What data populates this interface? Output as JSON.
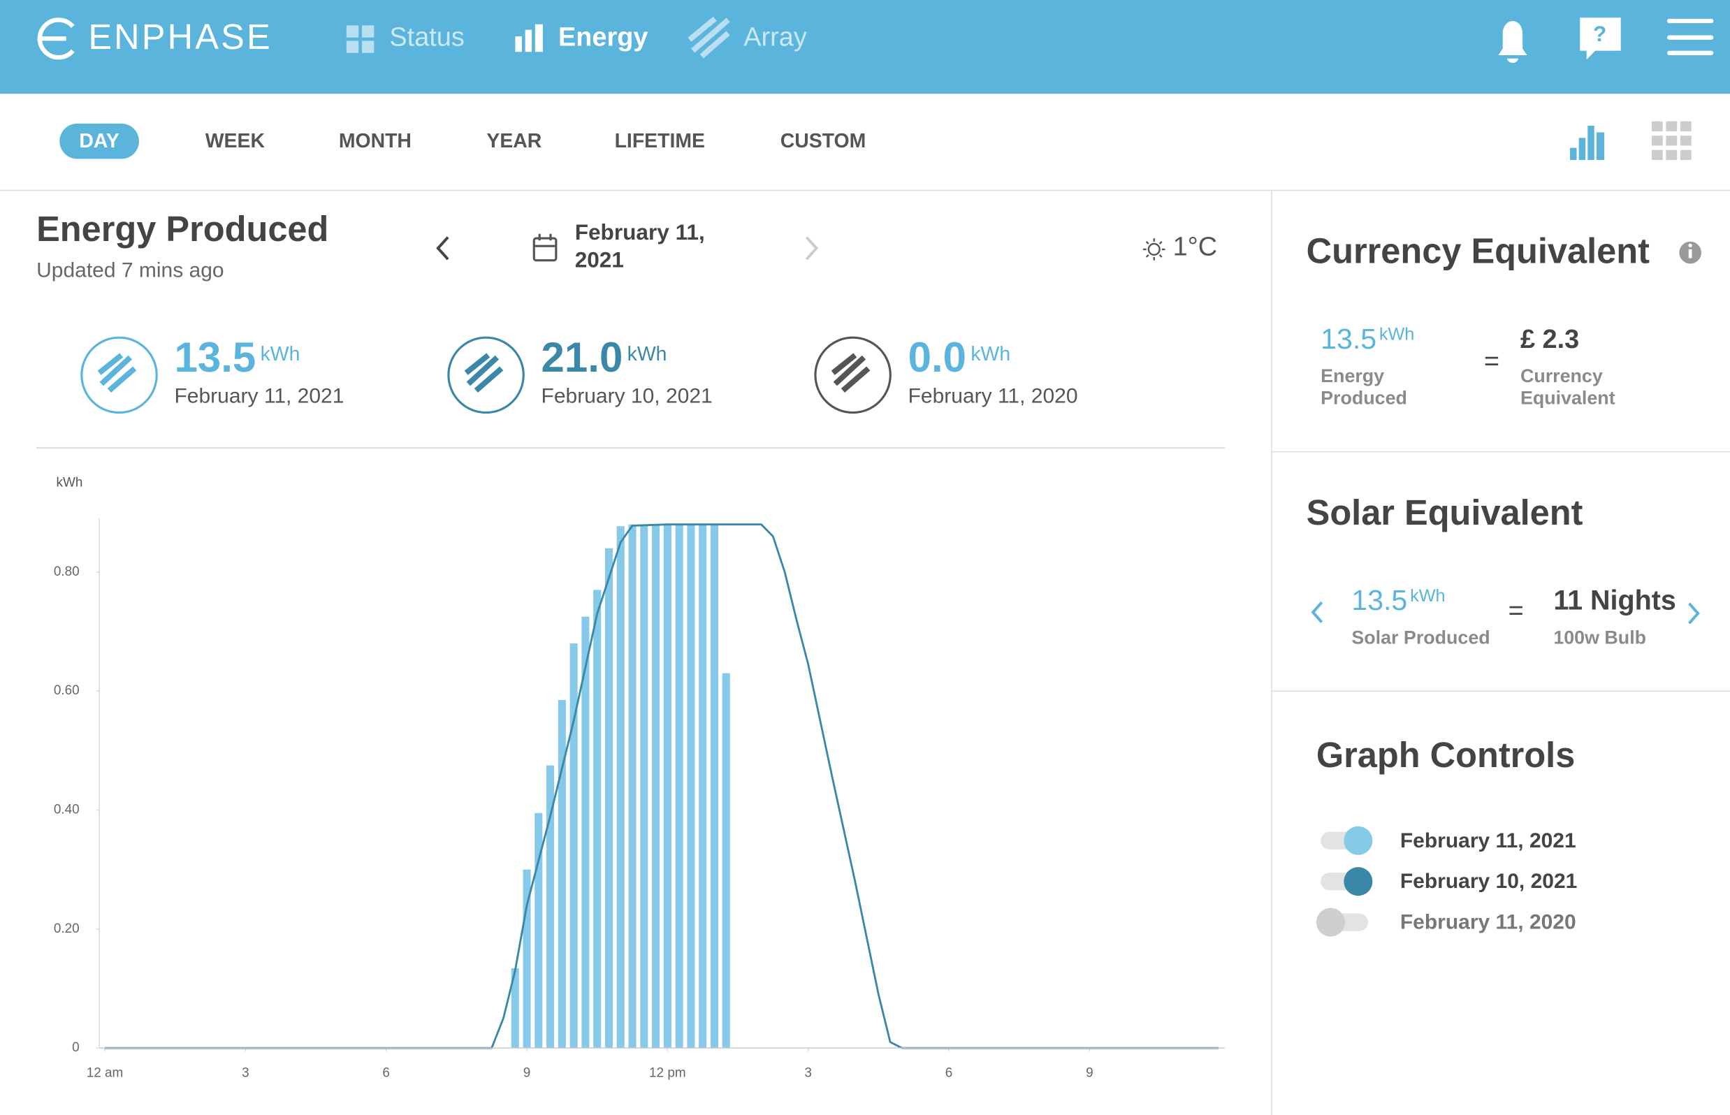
{
  "header": {
    "brand": "ENPHASE",
    "nav": [
      "Status",
      "Energy",
      "Array"
    ]
  },
  "tabs": [
    "DAY",
    "WEEK",
    "MONTH",
    "YEAR",
    "LIFETIME",
    "CUSTOM"
  ],
  "energy": {
    "title": "Energy Produced",
    "updated": "Updated 7 mins ago",
    "date_lines": [
      "February 11,",
      "2021"
    ],
    "temperature": "1°C",
    "summary": [
      {
        "value": "13.5",
        "unit": "kWh",
        "date": "February 11, 2021"
      },
      {
        "value": "21.0",
        "unit": "kWh",
        "date": "February 10, 2021"
      },
      {
        "value": "0.0",
        "unit": "kWh",
        "date": "February 11, 2020"
      }
    ]
  },
  "currency": {
    "title": "Currency Equivalent",
    "value": "13.5",
    "unit": "kWh",
    "value_label": [
      "Energy",
      "Produced"
    ],
    "equals": "=",
    "amount": "£ 2.3",
    "amount_label": [
      "Currency",
      "Equivalent"
    ]
  },
  "solar": {
    "title": "Solar Equivalent",
    "value": "13.5",
    "unit": "kWh",
    "value_label": "Solar Produced",
    "equals": "=",
    "equivalent": "11 Nights",
    "equivalent_label": "100w Bulb"
  },
  "graph_controls": {
    "title": "Graph Controls",
    "off_item": "February 11, 2020"
  },
  "chart_data": {
    "type": "bar",
    "y_label": "kWh",
    "xlim": [
      0,
      24
    ],
    "xticks": [
      {
        "value": 0,
        "label": "12 am"
      },
      3,
      6,
      9,
      {
        "value": 12,
        "label": "12 pm"
      },
      {
        "value": 15,
        "label": "3"
      },
      {
        "value": 18,
        "label": "6"
      },
      {
        "value": 21,
        "label": "9"
      }
    ],
    "ylim": [
      0,
      0.89
    ],
    "yticks": [
      0,
      {
        "value": 0.2,
        "label": "0.20"
      },
      {
        "value": 0.4,
        "label": "0.40"
      },
      {
        "value": 0.6,
        "label": "0.60"
      },
      {
        "value": 0.8,
        "label": "0.80"
      }
    ],
    "series": [
      {
        "name": "February 11, 2021",
        "type": "bar",
        "color": "#86c9e8",
        "x": [
          8.75,
          9,
          9.25,
          9.5,
          9.75,
          10,
          10.25,
          10.5,
          10.75,
          11,
          11.25,
          11.5,
          11.75,
          12,
          12.25,
          12.5,
          12.75,
          13,
          13.25
        ],
        "values": [
          0.134,
          0.3,
          0.395,
          0.475,
          0.585,
          0.68,
          0.725,
          0.77,
          0.84,
          0.877,
          0.88,
          0.88,
          0.88,
          0.88,
          0.88,
          0.88,
          0.88,
          0.88,
          0.63
        ]
      },
      {
        "name": "February 10, 2021",
        "type": "line",
        "color": "#3a87a8",
        "x": [
          0,
          8.25,
          8.5,
          8.75,
          9,
          9.5,
          10,
          10.5,
          11,
          11.25,
          12,
          14,
          14.25,
          14.5,
          14.75,
          15,
          15.5,
          16,
          16.5,
          16.75,
          17,
          23.75
        ],
        "values": [
          0,
          0,
          0.05,
          0.13,
          0.24,
          0.39,
          0.55,
          0.73,
          0.85,
          0.878,
          0.88,
          0.88,
          0.86,
          0.8,
          0.72,
          0.645,
          0.46,
          0.28,
          0.09,
          0.01,
          0,
          0
        ]
      }
    ]
  }
}
